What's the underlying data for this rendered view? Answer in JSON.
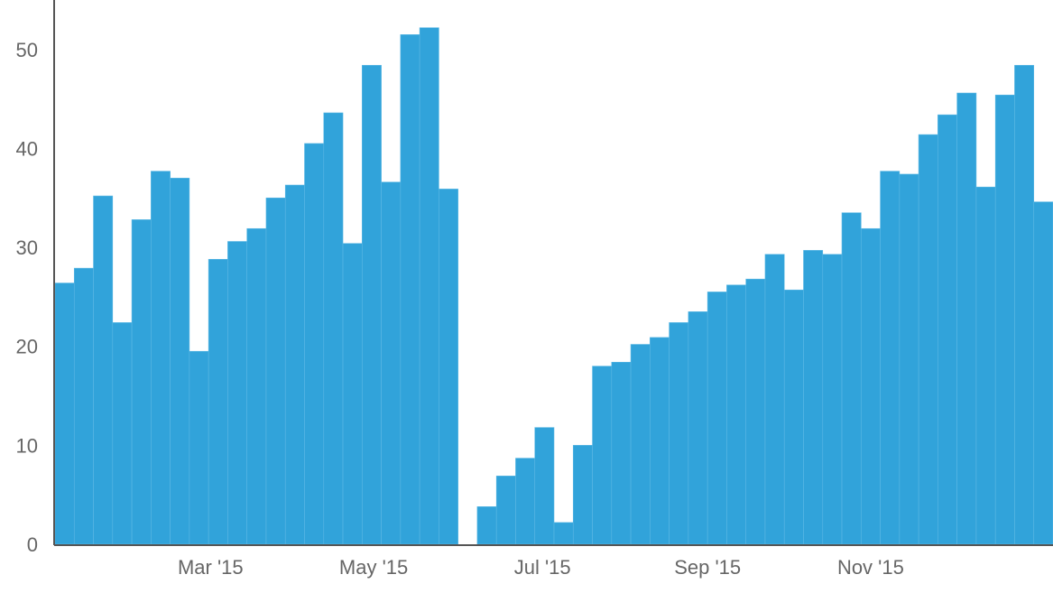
{
  "chart_data": {
    "type": "bar",
    "bar_color": "#31a3da",
    "bar_edge_color": "#5cb8e4",
    "grid": false,
    "ylim": [
      0,
      55
    ],
    "y_ticks": [
      0,
      10,
      20,
      30,
      40,
      50
    ],
    "x_tick_labels": [
      "Mar '15",
      "May '15",
      "Jul '15",
      "Sep '15",
      "Nov '15"
    ],
    "x_tick_index": [
      8.1,
      16.6,
      25.4,
      34.0,
      42.5
    ],
    "values": [
      26.4,
      27.9,
      35.2,
      22.4,
      32.8,
      37.7,
      37.0,
      19.5,
      28.8,
      30.6,
      31.9,
      35.0,
      36.3,
      40.5,
      43.6,
      30.4,
      48.4,
      36.6,
      51.5,
      52.2,
      35.9,
      0,
      3.8,
      6.9,
      8.7,
      11.8,
      2.2,
      10.0,
      18.0,
      18.4,
      20.2,
      20.9,
      22.4,
      23.5,
      25.5,
      26.2,
      26.8,
      29.3,
      25.7,
      29.7,
      29.3,
      33.5,
      31.9,
      37.7,
      37.4,
      41.4,
      43.4,
      45.6,
      36.1,
      45.4,
      48.4,
      34.6
    ]
  }
}
